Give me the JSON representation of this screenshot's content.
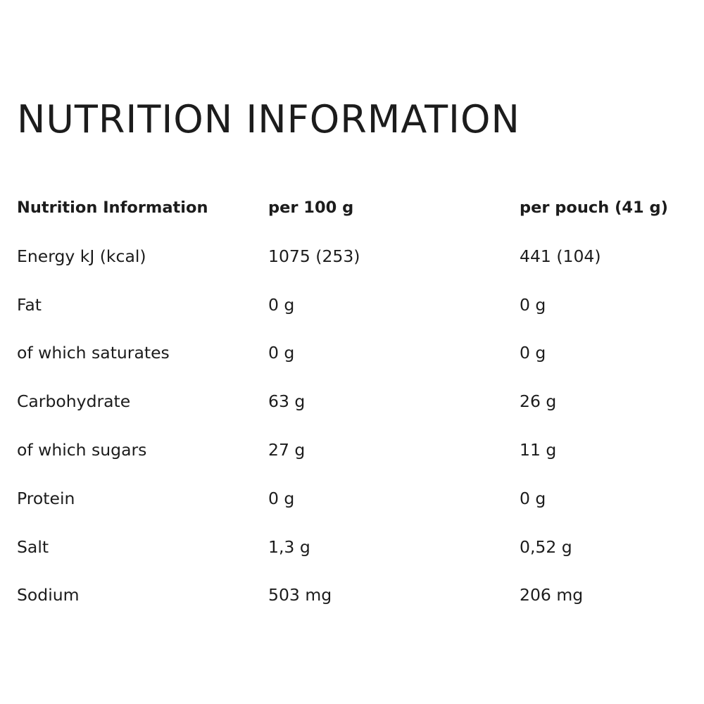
{
  "page_title": "NUTRITION INFORMATION",
  "table": {
    "headers": [
      "Nutrition Information",
      "per 100 g",
      "per pouch (41 g)"
    ],
    "rows": [
      [
        "Energy kJ (kcal)",
        "1075 (253)",
        "441 (104)"
      ],
      [
        "Fat",
        "0 g",
        "0 g"
      ],
      [
        "of which saturates",
        "0 g",
        "0 g"
      ],
      [
        "Carbohydrate",
        "63 g",
        "26 g"
      ],
      [
        "of which sugars",
        "27 g",
        "11 g"
      ],
      [
        "Protein",
        "0 g",
        "0 g"
      ],
      [
        "Salt",
        "1,3 g",
        "0,52 g"
      ],
      [
        "Sodium",
        "503 mg",
        "206 mg"
      ]
    ]
  }
}
